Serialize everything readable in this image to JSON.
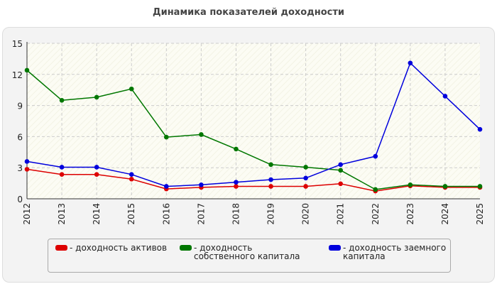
{
  "title": "Динамика показателей доходности",
  "chart_data": {
    "type": "line",
    "x": [
      "2012",
      "2013",
      "2014",
      "2015",
      "2016",
      "2017",
      "2018",
      "2019",
      "2020",
      "2021",
      "2022",
      "2023",
      "2024",
      "2025"
    ],
    "ylim": [
      0,
      15
    ],
    "yticks": [
      0,
      3,
      6,
      9,
      12,
      15
    ],
    "grid": true,
    "legend_position": "bottom",
    "series": [
      {
        "name": "- доходность активов",
        "color": "#dd0000",
        "values": [
          2.85,
          2.35,
          2.35,
          1.9,
          0.95,
          1.1,
          1.2,
          1.2,
          1.2,
          1.45,
          0.75,
          1.25,
          1.1,
          1.1
        ]
      },
      {
        "name": "- доходность собственного капитала",
        "color": "#007700",
        "values": [
          12.4,
          9.5,
          9.8,
          10.6,
          5.95,
          6.2,
          4.8,
          3.3,
          3.05,
          2.75,
          0.9,
          1.35,
          1.2,
          1.2
        ]
      },
      {
        "name": "- доходность заемного капитала",
        "color": "#0000dd",
        "values": [
          3.6,
          3.05,
          3.05,
          2.35,
          1.2,
          1.35,
          1.6,
          1.85,
          2.0,
          3.3,
          4.1,
          13.1,
          9.9,
          6.7
        ]
      }
    ]
  }
}
